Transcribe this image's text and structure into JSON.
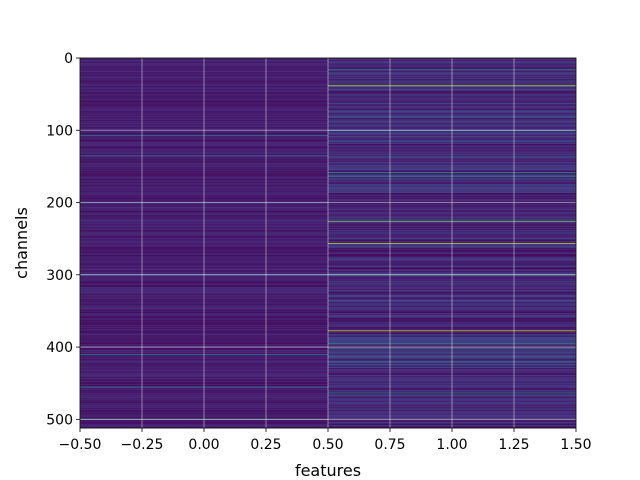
{
  "chart_data": {
    "type": "heatmap",
    "title": "",
    "xlabel": "features",
    "ylabel": "channels",
    "xlim": [
      -0.5,
      1.5
    ],
    "ylim": [
      512,
      0
    ],
    "y_inverted": true,
    "n_rows": 512,
    "n_cols": 2,
    "colormap": "viridis",
    "grid": true,
    "x_ticks": [
      -0.5,
      -0.25,
      0.0,
      0.25,
      0.5,
      0.75,
      1.0,
      1.25,
      1.5
    ],
    "x_tick_labels": [
      "−0.50",
      "−0.25",
      "0.00",
      "0.25",
      "0.50",
      "0.75",
      "1.00",
      "1.25",
      "1.50"
    ],
    "y_ticks": [
      0,
      100,
      200,
      300,
      400,
      500
    ],
    "y_tick_labels": [
      "0",
      "100",
      "200",
      "300",
      "400",
      "500"
    ],
    "column_base_level": [
      0.08,
      0.12
    ],
    "column_row_spread": [
      0.05,
      0.1
    ],
    "highlighted_rows": [
      {
        "column": 0,
        "row": 107,
        "level": 0.45
      },
      {
        "column": 0,
        "row": 135,
        "level": 0.35
      },
      {
        "column": 0,
        "row": 200,
        "level": 0.3
      },
      {
        "column": 0,
        "row": 299,
        "level": 0.35
      },
      {
        "column": 0,
        "row": 410,
        "level": 0.45
      },
      {
        "column": 0,
        "row": 455,
        "level": 0.35
      },
      {
        "column": 0,
        "row": 500,
        "level": 0.4
      },
      {
        "column": 1,
        "row": 16,
        "level": 0.55
      },
      {
        "column": 1,
        "row": 38,
        "level": 0.9
      },
      {
        "column": 1,
        "row": 100,
        "level": 0.45
      },
      {
        "column": 1,
        "row": 158,
        "level": 0.55
      },
      {
        "column": 1,
        "row": 163,
        "level": 0.5
      },
      {
        "column": 1,
        "row": 226,
        "level": 0.8
      },
      {
        "column": 1,
        "row": 256,
        "level": 0.9
      },
      {
        "column": 1,
        "row": 299,
        "level": 0.45
      },
      {
        "column": 1,
        "row": 377,
        "level": 0.92
      },
      {
        "column": 1,
        "row": 395,
        "level": 0.5
      },
      {
        "column": 1,
        "row": 402,
        "level": 0.55
      },
      {
        "column": 1,
        "row": 412,
        "level": 0.5
      },
      {
        "column": 1,
        "row": 420,
        "level": 0.45
      },
      {
        "column": 1,
        "row": 463,
        "level": 0.55
      }
    ]
  }
}
